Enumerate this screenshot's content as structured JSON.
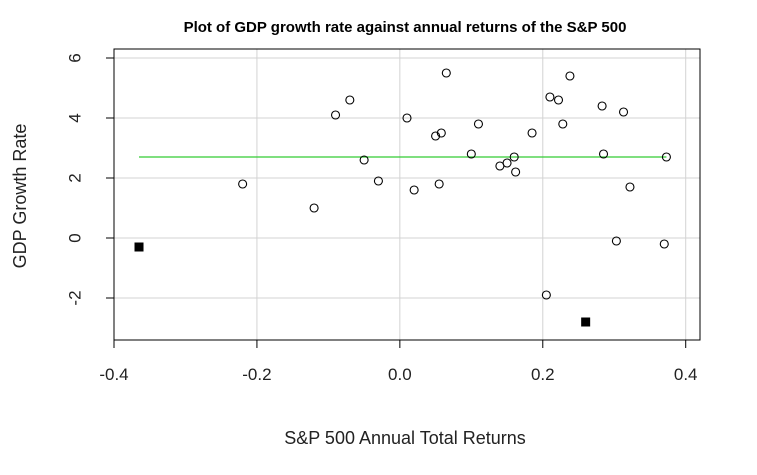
{
  "chart_data": {
    "type": "scatter",
    "title": "Plot of GDP growth rate against annual returns of the S&P 500",
    "xlabel": "S&P 500 Annual Total Returns",
    "ylabel": "GDP Growth Rate",
    "xlim": [
      -0.4,
      0.42
    ],
    "ylim": [
      -3.4,
      6.3
    ],
    "xticks": [
      "-0.4",
      "-0.2",
      "0.0",
      "0.2",
      "0.4"
    ],
    "xtick_values": [
      -0.4,
      -0.2,
      0.0,
      0.2,
      0.4
    ],
    "yticks": [
      "-2",
      "0",
      "2",
      "4",
      "6"
    ],
    "ytick_values": [
      -2,
      0,
      2,
      4,
      6
    ],
    "grid": true,
    "colors": {
      "points": "#000000",
      "fit_line": "#33cc33",
      "grid": "#d3d3d3",
      "frame": "#000000"
    },
    "series": [
      {
        "marker": "open-circle",
        "points": [
          [
            -0.22,
            1.8
          ],
          [
            -0.12,
            1.0
          ],
          [
            -0.09,
            4.1
          ],
          [
            -0.07,
            4.6
          ],
          [
            -0.05,
            2.6
          ],
          [
            -0.03,
            1.9
          ],
          [
            0.01,
            4.0
          ],
          [
            0.02,
            1.6
          ],
          [
            0.05,
            3.4
          ],
          [
            0.055,
            1.8
          ],
          [
            0.058,
            3.5
          ],
          [
            0.065,
            5.5
          ],
          [
            0.1,
            2.8
          ],
          [
            0.11,
            3.8
          ],
          [
            0.14,
            2.4
          ],
          [
            0.15,
            2.5
          ],
          [
            0.16,
            2.7
          ],
          [
            0.162,
            2.2
          ],
          [
            0.185,
            3.5
          ],
          [
            0.205,
            -1.9
          ],
          [
            0.21,
            4.7
          ],
          [
            0.222,
            4.6
          ],
          [
            0.228,
            3.8
          ],
          [
            0.238,
            5.4
          ],
          [
            0.283,
            4.4
          ],
          [
            0.285,
            2.8
          ],
          [
            0.303,
            -0.1
          ],
          [
            0.313,
            4.2
          ],
          [
            0.322,
            1.7
          ],
          [
            0.37,
            -0.2
          ],
          [
            0.373,
            2.7
          ]
        ]
      },
      {
        "marker": "filled-square",
        "points": [
          [
            -0.365,
            -0.3
          ],
          [
            0.26,
            -2.8
          ]
        ]
      }
    ],
    "fit_line": {
      "x": [
        -0.365,
        0.373
      ],
      "y": [
        2.7,
        2.7
      ]
    }
  }
}
